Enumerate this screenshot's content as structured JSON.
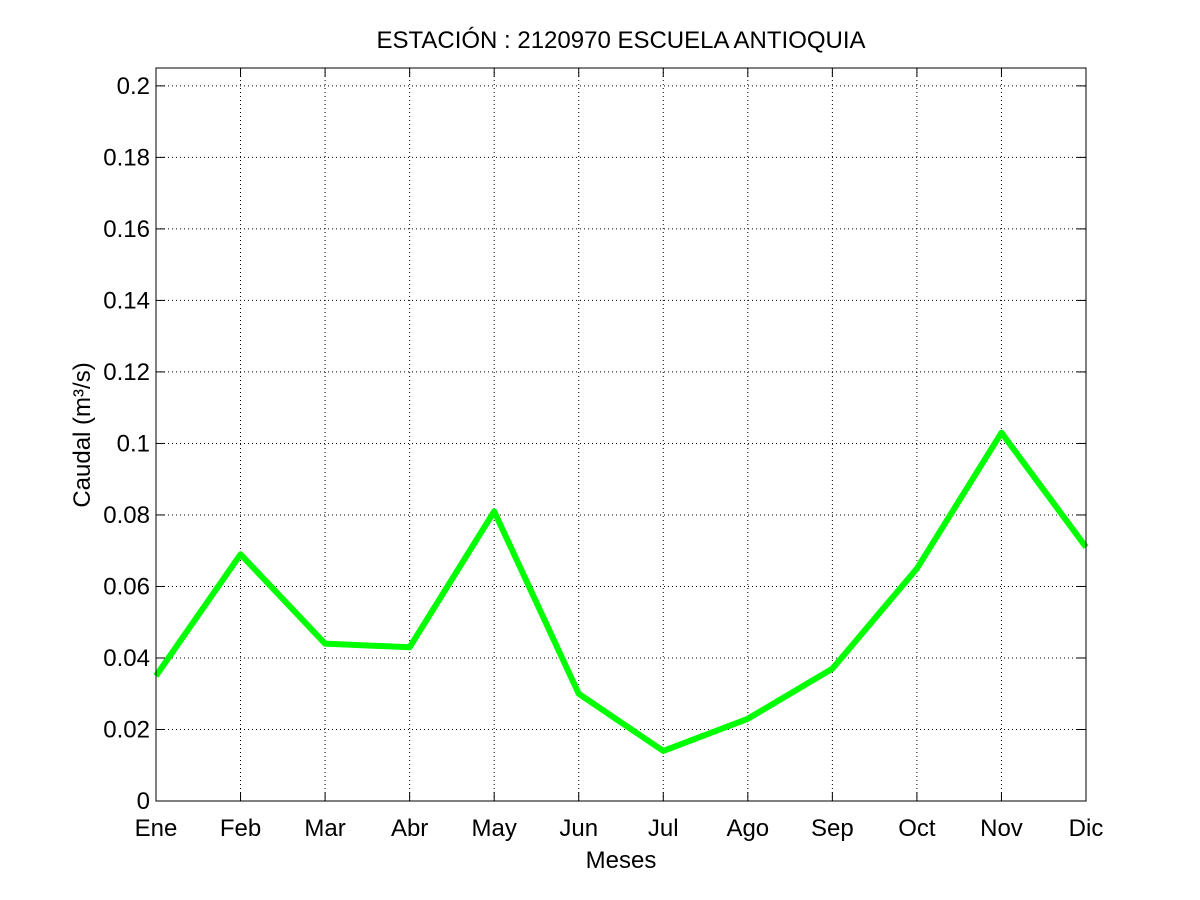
{
  "chart_data": {
    "type": "line",
    "title": "ESTACIÓN :  2120970  ESCUELA ANTIOQUIA",
    "xlabel": "Meses",
    "ylabel": "Caudal (m³/s)",
    "categories": [
      "Ene",
      "Feb",
      "Mar",
      "Abr",
      "May",
      "Jun",
      "Jul",
      "Ago",
      "Sep",
      "Oct",
      "Nov",
      "Dic"
    ],
    "series": [
      {
        "values": [
          0.035,
          0.069,
          0.044,
          0.043,
          0.081,
          0.03,
          0.014,
          0.023,
          0.037,
          0.065,
          0.103,
          0.071
        ],
        "color": "#00ff00"
      }
    ],
    "ylim": [
      0,
      0.205
    ],
    "yticks": [
      0,
      0.02,
      0.04,
      0.06,
      0.08,
      0.1,
      0.12,
      0.14,
      0.16,
      0.18,
      0.2
    ],
    "ytick_labels": [
      "0",
      "0.02",
      "0.04",
      "0.06",
      "0.08",
      "0.1",
      "0.12",
      "0.14",
      "0.16",
      "0.18",
      "0.2"
    ],
    "grid": true,
    "grid_style": "dotted"
  }
}
